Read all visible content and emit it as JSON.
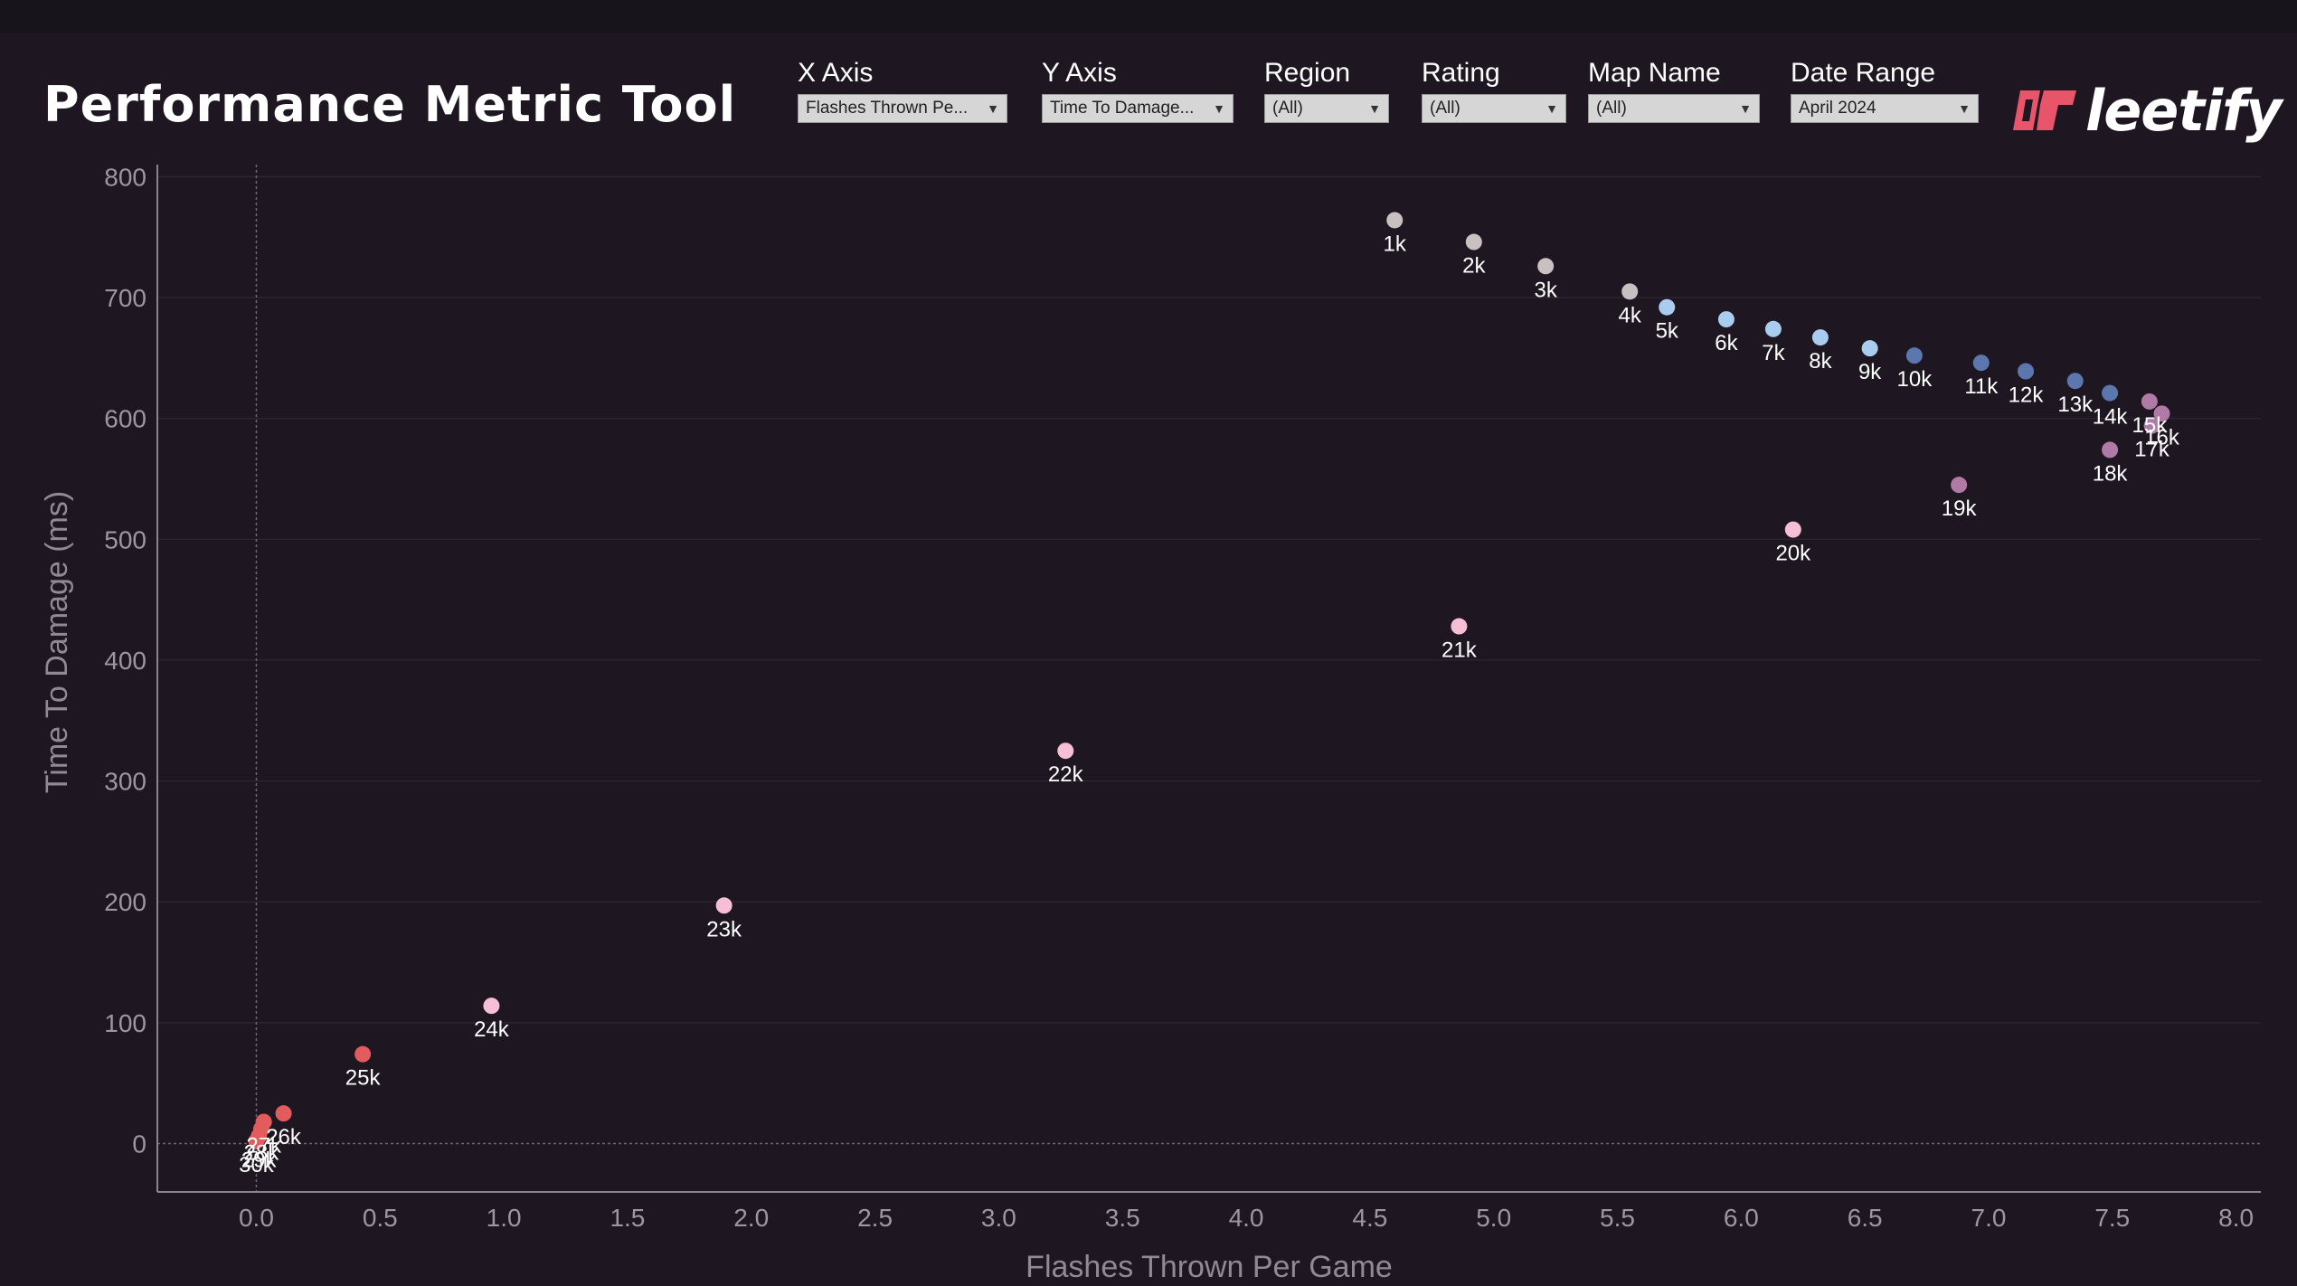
{
  "header": {
    "title": "Performance Metric Tool",
    "logo_text": "leetify",
    "logo_icon": "leetify-logo-mark-icon"
  },
  "filters": [
    {
      "label": "X Axis",
      "value": "Flashes Thrown Pe..."
    },
    {
      "label": "Y Axis",
      "value": "Time To Damage..."
    },
    {
      "label": "Region",
      "value": "(All)"
    },
    {
      "label": "Rating",
      "value": "(All)"
    },
    {
      "label": "Map Name",
      "value": "(All)"
    },
    {
      "label": "Date Range",
      "value": "April 2024"
    }
  ],
  "colors": {
    "background": "#1e1722",
    "accent": "#e8556a",
    "grey": "#c9c0c2",
    "light_blue": "#a9cdee",
    "dark_blue": "#5b77ad",
    "mauve": "#b07aa6",
    "pink": "#f6bfd6",
    "red": "#e25b5d"
  },
  "chart_data": {
    "type": "scatter",
    "title": "",
    "xlabel": "Flashes Thrown Per Game",
    "ylabel": "Time To Damage (ms)",
    "xlim": [
      -0.4,
      8.1
    ],
    "ylim": [
      -40,
      810
    ],
    "xticks": [
      0.0,
      0.5,
      1.0,
      1.5,
      2.0,
      2.5,
      3.0,
      3.5,
      4.0,
      4.5,
      5.0,
      5.5,
      6.0,
      6.5,
      7.0,
      7.5,
      8.0
    ],
    "yticks": [
      0,
      100,
      200,
      300,
      400,
      500,
      600,
      700,
      800
    ],
    "grid": true,
    "points": [
      {
        "label": "1k",
        "x": 4.6,
        "y": 764,
        "color": "#c9c0c2"
      },
      {
        "label": "2k",
        "x": 4.92,
        "y": 746,
        "color": "#c9c0c2"
      },
      {
        "label": "3k",
        "x": 5.21,
        "y": 726,
        "color": "#c9c0c2"
      },
      {
        "label": "4k",
        "x": 5.55,
        "y": 705,
        "color": "#c9c0c2"
      },
      {
        "label": "5k",
        "x": 5.7,
        "y": 692,
        "color": "#a9cdee"
      },
      {
        "label": "6k",
        "x": 5.94,
        "y": 682,
        "color": "#a9cdee"
      },
      {
        "label": "7k",
        "x": 6.13,
        "y": 674,
        "color": "#a9cdee"
      },
      {
        "label": "8k",
        "x": 6.32,
        "y": 667,
        "color": "#a9cdee"
      },
      {
        "label": "9k",
        "x": 6.52,
        "y": 658,
        "color": "#a9cdee"
      },
      {
        "label": "10k",
        "x": 6.7,
        "y": 652,
        "color": "#5b77ad"
      },
      {
        "label": "11k",
        "x": 6.97,
        "y": 646,
        "color": "#5b77ad"
      },
      {
        "label": "12k",
        "x": 7.15,
        "y": 639,
        "color": "#5b77ad"
      },
      {
        "label": "13k",
        "x": 7.35,
        "y": 631,
        "color": "#5b77ad"
      },
      {
        "label": "14k",
        "x": 7.49,
        "y": 621,
        "color": "#5b77ad"
      },
      {
        "label": "15k",
        "x": 7.65,
        "y": 614,
        "color": "#b07aa6"
      },
      {
        "label": "16k",
        "x": 7.7,
        "y": 604,
        "color": "#b07aa6"
      },
      {
        "label": "17k",
        "x": 7.66,
        "y": 594,
        "color": "#b07aa6"
      },
      {
        "label": "18k",
        "x": 7.49,
        "y": 574,
        "color": "#b07aa6"
      },
      {
        "label": "19k",
        "x": 6.88,
        "y": 545,
        "color": "#b07aa6"
      },
      {
        "label": "20k",
        "x": 6.21,
        "y": 508,
        "color": "#f6bfd6"
      },
      {
        "label": "21k",
        "x": 4.86,
        "y": 428,
        "color": "#f6bfd6"
      },
      {
        "label": "22k",
        "x": 3.27,
        "y": 325,
        "color": "#f6bfd6"
      },
      {
        "label": "23k",
        "x": 1.89,
        "y": 197,
        "color": "#f6bfd6"
      },
      {
        "label": "24k",
        "x": 0.95,
        "y": 114,
        "color": "#f6bfd6"
      },
      {
        "label": "25k",
        "x": 0.43,
        "y": 74,
        "color": "#e25b5d"
      },
      {
        "label": "26k",
        "x": 0.11,
        "y": 25,
        "color": "#e25b5d"
      },
      {
        "label": "27k",
        "x": 0.03,
        "y": 18,
        "color": "#e25b5d"
      },
      {
        "label": "28k",
        "x": 0.02,
        "y": 12,
        "color": "#e25b5d"
      },
      {
        "label": "29k",
        "x": 0.01,
        "y": 6,
        "color": "#e25b5d"
      },
      {
        "label": "30k",
        "x": 0.0,
        "y": 2,
        "color": "#e25b5d"
      }
    ]
  }
}
